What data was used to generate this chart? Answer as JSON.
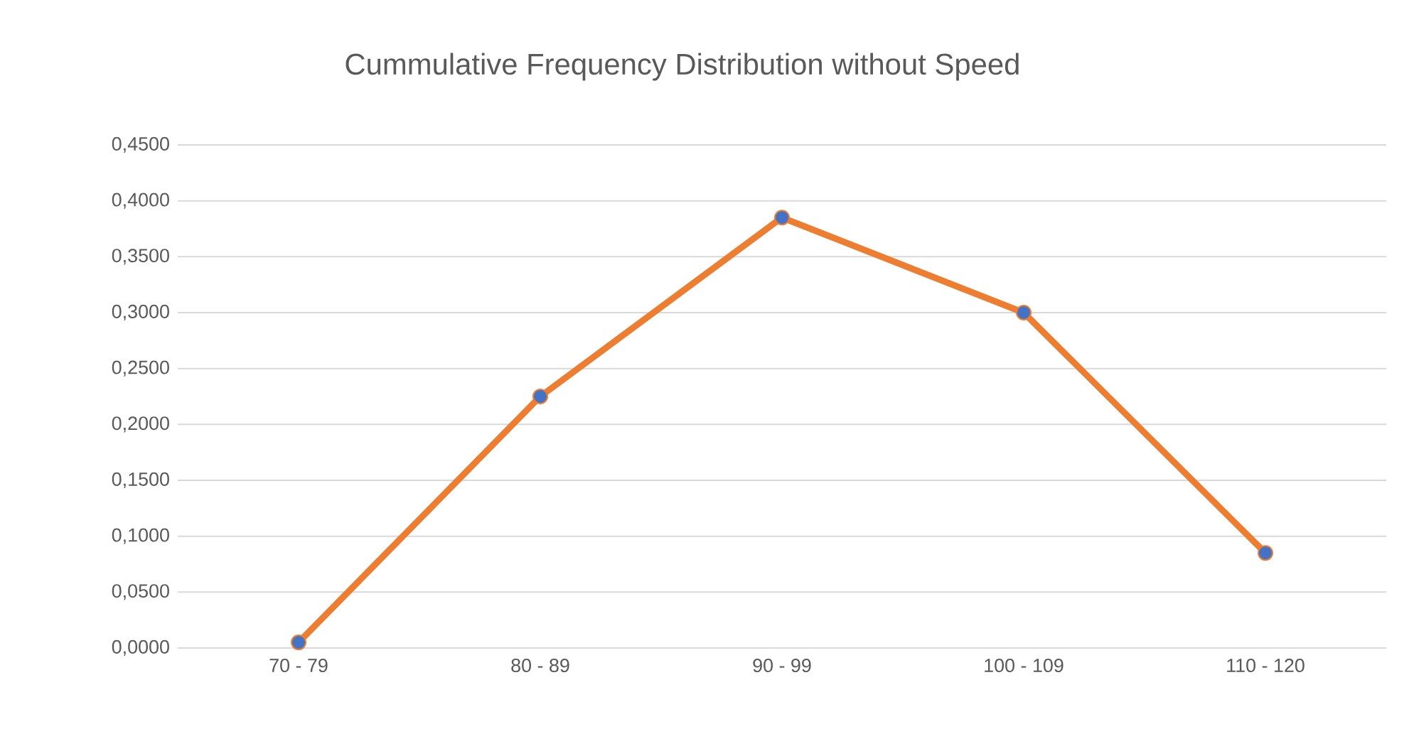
{
  "chart_data": {
    "type": "line",
    "title": "Cummulative Frequency Distribution without Speed",
    "categories": [
      "70 - 79",
      "80 - 89",
      "90 - 99",
      "100 - 109",
      "110 - 120"
    ],
    "series": [
      {
        "color": "#ed7d31",
        "colors": [
          "#4472c4",
          "#4472c4",
          "#4472c4",
          "#4472c4",
          "#4472c4"
        ],
        "values": [
          0.005,
          0.225,
          0.385,
          0.3,
          0.085
        ]
      }
    ],
    "ylim": [
      0,
      0.45
    ],
    "yticks": [
      {
        "value": 0,
        "label": "0,0000"
      },
      {
        "value": 0.05,
        "label": "0,0500"
      },
      {
        "value": 0.1,
        "label": "0,1000"
      },
      {
        "value": 0.15,
        "label": "0,1500"
      },
      {
        "value": 0.2,
        "label": "0,2000"
      },
      {
        "value": 0.25,
        "label": "0,2500"
      },
      {
        "value": 0.3,
        "label": "0,3000"
      },
      {
        "value": 0.35,
        "label": "0,3500"
      },
      {
        "value": 0.4,
        "label": "0,4000"
      },
      {
        "value": 0.45,
        "label": "0,4500"
      }
    ],
    "grid": "y",
    "marker": "circle",
    "line_style": "solid"
  }
}
